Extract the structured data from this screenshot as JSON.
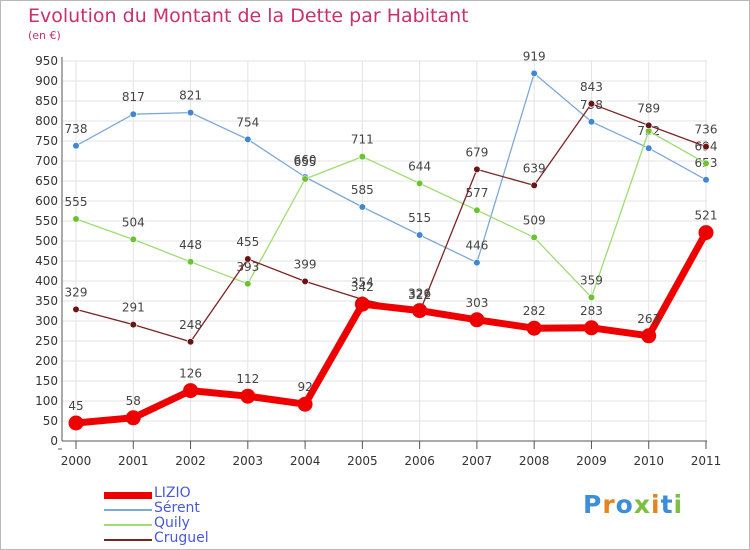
{
  "title": "Evolution du Montant de la Dette par Habitant",
  "subtitle": "(en €)",
  "logo": {
    "letters": [
      "P",
      "r",
      "o",
      "x",
      "i",
      "t",
      "i"
    ],
    "colors": [
      "#3d8ed8",
      "#e8821e",
      "#3d8ed8",
      "#7bc043",
      "#e8821e",
      "#3d8ed8",
      "#7bc043"
    ]
  },
  "chart_data": {
    "type": "line",
    "x": [
      "2000",
      "2001",
      "2002",
      "2003",
      "2004",
      "2005",
      "2006",
      "2007",
      "2008",
      "2009",
      "2010",
      "2011"
    ],
    "ylim": [
      0,
      950
    ],
    "yticks": [
      0,
      50,
      100,
      150,
      200,
      250,
      300,
      350,
      400,
      450,
      500,
      550,
      600,
      650,
      700,
      750,
      800,
      850,
      900,
      950
    ],
    "grid": true,
    "series": [
      {
        "name": "LIZIO",
        "color": "#ee0000",
        "marker_color": "#ee0000",
        "width": 6,
        "values": [
          45,
          58,
          126,
          112,
          92,
          342,
          326,
          303,
          282,
          283,
          263,
          521
        ],
        "labels": [
          "45",
          "58",
          "126",
          "112",
          "92",
          "342",
          "326",
          "303",
          "282",
          "283",
          "263",
          "521"
        ]
      },
      {
        "name": "Sérent",
        "color": "#7ea9d6",
        "marker_color": "#3f87cf",
        "width": 1,
        "values": [
          738,
          817,
          821,
          754,
          660,
          585,
          515,
          446,
          919,
          798,
          732,
          653
        ],
        "labels": [
          "738",
          "817",
          "821",
          "754",
          "660",
          "585",
          "515",
          "446",
          "919",
          "798",
          "732",
          "653"
        ]
      },
      {
        "name": "Quily",
        "color": "#9fdc71",
        "marker_color": "#6cc231",
        "width": 1,
        "values": [
          555,
          504,
          448,
          393,
          655,
          711,
          644,
          577,
          509,
          359,
          775,
          694
        ],
        "labels": [
          "555",
          "504",
          "448",
          "393",
          "655",
          "711",
          "644",
          "577",
          "509",
          "359",
          "",
          "694"
        ]
      },
      {
        "name": "Cruguel",
        "color": "#7a2424",
        "marker_color": "#6b1414",
        "width": 1,
        "values": [
          329,
          291,
          248,
          455,
          399,
          354,
          322,
          679,
          639,
          843,
          789,
          736
        ],
        "labels": [
          "329",
          "291",
          "248",
          "455",
          "399",
          "354",
          "322",
          "679",
          "639",
          "843",
          "789",
          "736"
        ]
      }
    ]
  }
}
